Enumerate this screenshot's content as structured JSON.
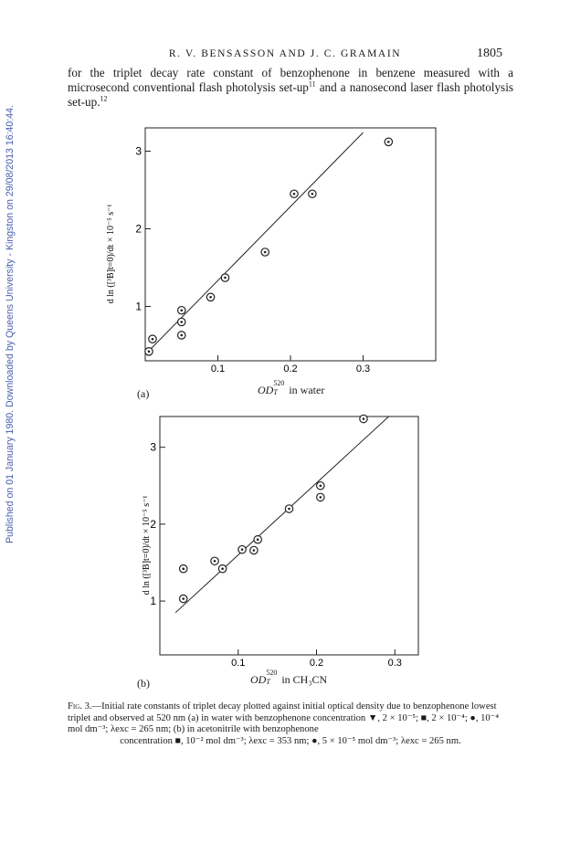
{
  "header": {
    "authors": "R. V. BENSASSON AND J. C. GRAMAIN",
    "page_number": "1805"
  },
  "sidebar_note": "Published on 01 January 1980. Downloaded by Queens University - Kingston on 29/08/2013 16:40:44.",
  "body_text": {
    "part1": "for the triplet decay rate constant of benzophenone in benzene measured with a microsecond conventional flash photolysis set-up",
    "ref1": "11",
    "part2": " and a nanosecond laser flash photolysis set-up.",
    "ref2": "12"
  },
  "chart_data": [
    {
      "type": "scatter",
      "panel_label": "(a)",
      "title": "",
      "xlabel": "OD_T^520 in water",
      "ylabel": "d ln ([³B]t=0)/dt × 10⁻⁵ s⁻¹",
      "xlim": [
        0,
        0.4
      ],
      "ylim": [
        0.3,
        3.3
      ],
      "x_ticks": [
        "0.1",
        "0.2",
        "0.3"
      ],
      "y_ticks": [
        "1",
        "2",
        "3"
      ],
      "series": [
        {
          "marker": "circled-dot",
          "points": [
            [
              0.005,
              0.42
            ],
            [
              0.01,
              0.58
            ],
            [
              0.05,
              0.63
            ],
            [
              0.05,
              0.8
            ],
            [
              0.05,
              0.95
            ],
            [
              0.09,
              1.12
            ],
            [
              0.11,
              1.37
            ],
            [
              0.165,
              1.7
            ],
            [
              0.205,
              2.45
            ],
            [
              0.23,
              2.45
            ],
            [
              0.335,
              3.12
            ]
          ]
        }
      ],
      "fit_line": [
        [
          0.0,
          0.38
        ],
        [
          0.3,
          3.24
        ]
      ],
      "legend": "none",
      "grid": false
    },
    {
      "type": "scatter",
      "panel_label": "(b)",
      "title": "",
      "xlabel": "OD_T^520 in CH₃CN",
      "ylabel": "d ln ([³B]t=0)/dt × 10⁻⁵ s⁻¹",
      "xlim": [
        0,
        0.33
      ],
      "ylim": [
        0.3,
        3.4
      ],
      "x_ticks": [
        "0.1",
        "0.2",
        "0.3"
      ],
      "y_ticks": [
        "1",
        "2",
        "3"
      ],
      "series": [
        {
          "marker": "circled-dot",
          "points": [
            [
              0.03,
              1.42
            ],
            [
              0.03,
              1.03
            ],
            [
              0.07,
              1.52
            ],
            [
              0.08,
              1.42
            ],
            [
              0.105,
              1.67
            ],
            [
              0.12,
              1.66
            ],
            [
              0.125,
              1.8
            ],
            [
              0.165,
              2.2
            ],
            [
              0.205,
              2.35
            ],
            [
              0.205,
              2.5
            ],
            [
              0.26,
              3.37
            ]
          ]
        }
      ],
      "fit_line": [
        [
          0.02,
          0.85
        ],
        [
          0.305,
          3.52
        ]
      ],
      "legend": "none",
      "grid": false
    }
  ],
  "panel_a": {
    "label": "(a)",
    "xlabel_var": "OD",
    "xlabel_sub": "T",
    "xlabel_sup": "520",
    "xlabel_rest": " in water",
    "ylabel": "d ln ([³B]t=0)/dt × 10⁻⁵ s⁻¹"
  },
  "panel_b": {
    "label": "(b)",
    "xlabel_var": "OD",
    "xlabel_sub": "T",
    "xlabel_sup": "520",
    "xlabel_rest": " in CH₃CN",
    "ylabel": "d ln ([³B]t=0)/dt × 10⁻⁵ s⁻¹"
  },
  "caption": {
    "lead": "Fig. 3.",
    "line1": "—Initial rate constants of triplet decay plotted against initial optical density due to benzophenone lowest triplet and observed at 520 nm (a) in water with benzophenone concentration ▼, 2 × 10⁻⁵; ■, 2 × 10⁻⁴; ●, 10⁻⁴ mol dm⁻³; λexc = 265 nm; (b) in acetonitrile with benzophenone",
    "line2": "concentration ■, 10⁻² mol dm⁻³; λexc = 353 nm; ●, 5 × 10⁻⁵ mol dm⁻³; λexc = 265 nm."
  }
}
